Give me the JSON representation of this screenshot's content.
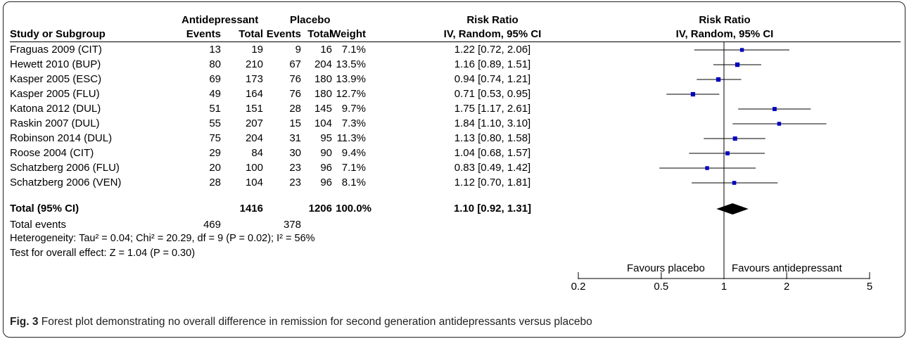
{
  "table": {
    "group_headers": {
      "experimental": "Antidepressant",
      "control": "Placebo",
      "risk_ratio": "Risk Ratio",
      "plot_title": "Risk Ratio"
    },
    "columns": {
      "study": "Study or Subgroup",
      "exp_events": "Events",
      "exp_total": "Total",
      "ctl_events": "Events",
      "ctl_total": "Total",
      "weight": "Weight",
      "rr_method": "IV, Random, 95% CI",
      "plot_method": "IV, Random, 95% CI"
    },
    "rows": [
      {
        "study": "Fraguas 2009 (CIT)",
        "exp_events": "13",
        "exp_total": "19",
        "ctl_events": "9",
        "ctl_total": "16",
        "weight": "7.1%",
        "rr": "1.22 [0.72, 2.06]"
      },
      {
        "study": "Hewett 2010 (BUP)",
        "exp_events": "80",
        "exp_total": "210",
        "ctl_events": "67",
        "ctl_total": "204",
        "weight": "13.5%",
        "rr": "1.16 [0.89, 1.51]"
      },
      {
        "study": "Kasper 2005 (ESC)",
        "exp_events": "69",
        "exp_total": "173",
        "ctl_events": "76",
        "ctl_total": "180",
        "weight": "13.9%",
        "rr": "0.94 [0.74, 1.21]"
      },
      {
        "study": "Kasper 2005 (FLU)",
        "exp_events": "49",
        "exp_total": "164",
        "ctl_events": "76",
        "ctl_total": "180",
        "weight": "12.7%",
        "rr": "0.71 [0.53, 0.95]"
      },
      {
        "study": "Katona 2012 (DUL)",
        "exp_events": "51",
        "exp_total": "151",
        "ctl_events": "28",
        "ctl_total": "145",
        "weight": "9.7%",
        "rr": "1.75 [1.17, 2.61]"
      },
      {
        "study": "Raskin 2007 (DUL)",
        "exp_events": "55",
        "exp_total": "207",
        "ctl_events": "15",
        "ctl_total": "104",
        "weight": "7.3%",
        "rr": "1.84 [1.10, 3.10]"
      },
      {
        "study": "Robinson 2014 (DUL)",
        "exp_events": "75",
        "exp_total": "204",
        "ctl_events": "31",
        "ctl_total": "95",
        "weight": "11.3%",
        "rr": "1.13 [0.80, 1.58]"
      },
      {
        "study": "Roose 2004 (CIT)",
        "exp_events": "29",
        "exp_total": "84",
        "ctl_events": "30",
        "ctl_total": "90",
        "weight": "9.4%",
        "rr": "1.04 [0.68, 1.57]"
      },
      {
        "study": "Schatzberg 2006 (FLU)",
        "exp_events": "20",
        "exp_total": "100",
        "ctl_events": "23",
        "ctl_total": "96",
        "weight": "7.1%",
        "rr": "0.83 [0.49, 1.42]"
      },
      {
        "study": "Schatzberg 2006 (VEN)",
        "exp_events": "28",
        "exp_total": "104",
        "ctl_events": "23",
        "ctl_total": "96",
        "weight": "8.1%",
        "rr": "1.12 [0.70, 1.81]"
      }
    ],
    "total": {
      "label": "Total (95% CI)",
      "exp_total": "1416",
      "ctl_total": "1206",
      "weight": "100.0%",
      "rr": "1.10 [0.92, 1.31]"
    },
    "total_events": {
      "label": "Total events",
      "exp": "469",
      "ctl": "378"
    },
    "heterogeneity": "Heterogeneity: Tau² = 0.04; Chi² = 20.29, df = 9 (P = 0.02); I² = 56%",
    "overall_effect": "Test for overall effect: Z = 1.04 (P = 0.30)"
  },
  "chart_data": {
    "type": "forest",
    "title": "Risk Ratio",
    "subtitle": "IV, Random, 95% CI",
    "x_scale": "log",
    "xlim": [
      0.2,
      5
    ],
    "xticks": [
      0.2,
      0.5,
      1,
      2,
      5
    ],
    "xtick_labels": [
      "0.2",
      "0.5",
      "1",
      "2",
      "5"
    ],
    "null_line": 1,
    "favours_left": "Favours placebo",
    "favours_right": "Favours antidepressant",
    "studies": [
      {
        "name": "Fraguas 2009 (CIT)",
        "rr": 1.22,
        "lo": 0.72,
        "hi": 2.06,
        "weight": 7.1
      },
      {
        "name": "Hewett 2010 (BUP)",
        "rr": 1.16,
        "lo": 0.89,
        "hi": 1.51,
        "weight": 13.5
      },
      {
        "name": "Kasper 2005 (ESC)",
        "rr": 0.94,
        "lo": 0.74,
        "hi": 1.21,
        "weight": 13.9
      },
      {
        "name": "Kasper 2005 (FLU)",
        "rr": 0.71,
        "lo": 0.53,
        "hi": 0.95,
        "weight": 12.7
      },
      {
        "name": "Katona 2012 (DUL)",
        "rr": 1.75,
        "lo": 1.17,
        "hi": 2.61,
        "weight": 9.7
      },
      {
        "name": "Raskin 2007 (DUL)",
        "rr": 1.84,
        "lo": 1.1,
        "hi": 3.1,
        "weight": 7.3
      },
      {
        "name": "Robinson 2014 (DUL)",
        "rr": 1.13,
        "lo": 0.8,
        "hi": 1.58,
        "weight": 11.3
      },
      {
        "name": "Roose 2004 (CIT)",
        "rr": 1.04,
        "lo": 0.68,
        "hi": 1.57,
        "weight": 9.4
      },
      {
        "name": "Schatzberg 2006 (FLU)",
        "rr": 0.83,
        "lo": 0.49,
        "hi": 1.42,
        "weight": 7.1
      },
      {
        "name": "Schatzberg 2006 (VEN)",
        "rr": 1.12,
        "lo": 0.7,
        "hi": 1.81,
        "weight": 8.1
      }
    ],
    "pooled": {
      "rr": 1.1,
      "lo": 0.92,
      "hi": 1.31
    },
    "colors": {
      "marker": "#0000c0",
      "line": "#000000",
      "diamond": "#000000"
    }
  },
  "caption": {
    "label": "Fig. 3",
    "text": " Forest plot demonstrating no overall difference in remission for second generation antidepressants versus placebo"
  }
}
